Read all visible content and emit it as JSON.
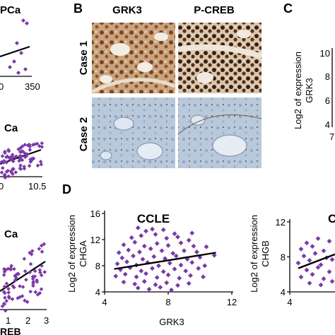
{
  "panel_letters": {
    "b": "B",
    "c": "C",
    "d": "D"
  },
  "left_column": {
    "top_label": "PCa",
    "top_tick": "350",
    "top_tick_left": "0",
    "mid_label": "Ca",
    "mid_tick": "10.5",
    "mid_tick_left": "0",
    "bottom_label": "Ca",
    "bottom_ticks": [
      "1",
      "2",
      "3"
    ],
    "bottom_axis_label": "REB"
  },
  "ihc": {
    "col_headers": [
      "GRK3",
      "P-CREB"
    ],
    "row_labels": [
      "Case 1",
      "Case 2"
    ]
  },
  "panel_c": {
    "ylabel_line1": "Log2  of expression",
    "ylabel_line2": "GRK3",
    "yticks": [
      "10",
      "8",
      "6",
      "4"
    ],
    "xtick": "7"
  },
  "colors": {
    "point": "#7a3aa8",
    "line": "#000000",
    "ihc_brown": "#6b3a1a",
    "ihc_blue": "#9fb3cf"
  },
  "chart_data": [
    {
      "type": "scatter",
      "title": "CCLE",
      "xlabel": "GRK3",
      "ylabel": "Log2  of expression CHGA",
      "xlim": [
        4,
        12
      ],
      "ylim": [
        4,
        16
      ],
      "xticks": [
        "4",
        "8",
        "12"
      ],
      "yticks": [
        "4",
        "8",
        "12",
        "16"
      ],
      "trend": {
        "x": [
          4.6,
          11.0
        ],
        "y": [
          7.5,
          10.0
        ]
      },
      "points": [
        [
          6.1,
          13.8
        ],
        [
          6.6,
          13.3
        ],
        [
          7.0,
          13.6
        ],
        [
          7.7,
          13.5
        ],
        [
          8.4,
          12.9
        ],
        [
          9.5,
          13.0
        ],
        [
          5.7,
          12.3
        ],
        [
          6.3,
          12.6
        ],
        [
          7.2,
          12.8
        ],
        [
          7.9,
          12.2
        ],
        [
          8.6,
          12.4
        ],
        [
          9.3,
          11.9
        ],
        [
          5.2,
          11.2
        ],
        [
          5.9,
          11.6
        ],
        [
          6.5,
          11.0
        ],
        [
          7.3,
          11.4
        ],
        [
          8.0,
          11.1
        ],
        [
          8.8,
          11.5
        ],
        [
          9.6,
          11.0
        ],
        [
          10.4,
          10.9
        ],
        [
          4.9,
          10.0
        ],
        [
          5.5,
          10.4
        ],
        [
          6.2,
          10.1
        ],
        [
          6.9,
          10.6
        ],
        [
          7.6,
          10.3
        ],
        [
          8.3,
          9.9
        ],
        [
          9.0,
          10.3
        ],
        [
          9.8,
          10.1
        ],
        [
          5.1,
          9.2
        ],
        [
          5.8,
          9.5
        ],
        [
          6.4,
          9.0
        ],
        [
          7.1,
          9.4
        ],
        [
          7.8,
          9.1
        ],
        [
          8.5,
          9.5
        ],
        [
          9.2,
          9.0
        ],
        [
          10.0,
          9.3
        ],
        [
          10.9,
          9.6
        ],
        [
          4.8,
          8.3
        ],
        [
          5.4,
          8.6
        ],
        [
          6.0,
          8.1
        ],
        [
          6.7,
          8.5
        ],
        [
          7.4,
          8.0
        ],
        [
          8.1,
          8.4
        ],
        [
          8.8,
          8.1
        ],
        [
          9.5,
          8.5
        ],
        [
          10.3,
          8.0
        ],
        [
          5.0,
          7.4
        ],
        [
          5.6,
          7.7
        ],
        [
          6.3,
          7.2
        ],
        [
          7.0,
          7.6
        ],
        [
          7.7,
          7.1
        ],
        [
          8.4,
          7.5
        ],
        [
          9.1,
          7.2
        ],
        [
          9.9,
          7.6
        ],
        [
          4.7,
          6.4
        ],
        [
          5.3,
          6.7
        ],
        [
          6.0,
          6.3
        ],
        [
          6.6,
          6.8
        ],
        [
          7.3,
          6.2
        ],
        [
          8.0,
          6.6
        ],
        [
          8.7,
          6.1
        ],
        [
          9.4,
          6.5
        ],
        [
          10.2,
          6.3
        ],
        [
          5.2,
          5.5
        ],
        [
          5.9,
          5.2
        ],
        [
          6.5,
          5.6
        ],
        [
          7.2,
          5.1
        ],
        [
          7.9,
          5.4
        ],
        [
          8.6,
          5.0
        ],
        [
          9.3,
          5.3
        ],
        [
          6.1,
          4.6
        ],
        [
          6.8,
          4.4
        ],
        [
          7.5,
          4.7
        ],
        [
          8.2,
          4.3
        ]
      ]
    },
    {
      "type": "scatter",
      "title": "C",
      "ylabel": "Log2  of expression CHGB",
      "xlim": [
        4,
        7
      ],
      "ylim": [
        4,
        12
      ],
      "xticks": [
        "4"
      ],
      "yticks": [
        "4",
        "8",
        "12"
      ],
      "trend": {
        "x": [
          4.3,
          6.5
        ],
        "y": [
          6.7,
          8.3
        ]
      },
      "points": [
        [
          4.6,
          9.6
        ],
        [
          5.0,
          10.1
        ],
        [
          5.4,
          9.8
        ],
        [
          5.8,
          10.3
        ],
        [
          6.2,
          9.9
        ],
        [
          4.4,
          8.9
        ],
        [
          4.8,
          9.2
        ],
        [
          5.2,
          8.7
        ],
        [
          5.6,
          9.3
        ],
        [
          6.0,
          8.9
        ],
        [
          6.4,
          9.4
        ],
        [
          4.5,
          8.1
        ],
        [
          4.9,
          8.4
        ],
        [
          5.3,
          7.9
        ],
        [
          5.7,
          8.5
        ],
        [
          6.1,
          8.0
        ],
        [
          4.3,
          7.3
        ],
        [
          4.7,
          7.6
        ],
        [
          5.1,
          7.1
        ],
        [
          5.5,
          7.7
        ],
        [
          5.9,
          7.2
        ],
        [
          6.3,
          7.6
        ],
        [
          4.6,
          6.5
        ],
        [
          5.0,
          6.8
        ],
        [
          5.4,
          6.3
        ],
        [
          5.8,
          6.9
        ],
        [
          6.2,
          6.4
        ],
        [
          4.4,
          5.7
        ],
        [
          4.8,
          6.0
        ],
        [
          5.2,
          5.5
        ],
        [
          5.6,
          5.9
        ],
        [
          4.7,
          5.0
        ],
        [
          5.1,
          4.8
        ],
        [
          5.5,
          5.2
        ]
      ]
    }
  ]
}
